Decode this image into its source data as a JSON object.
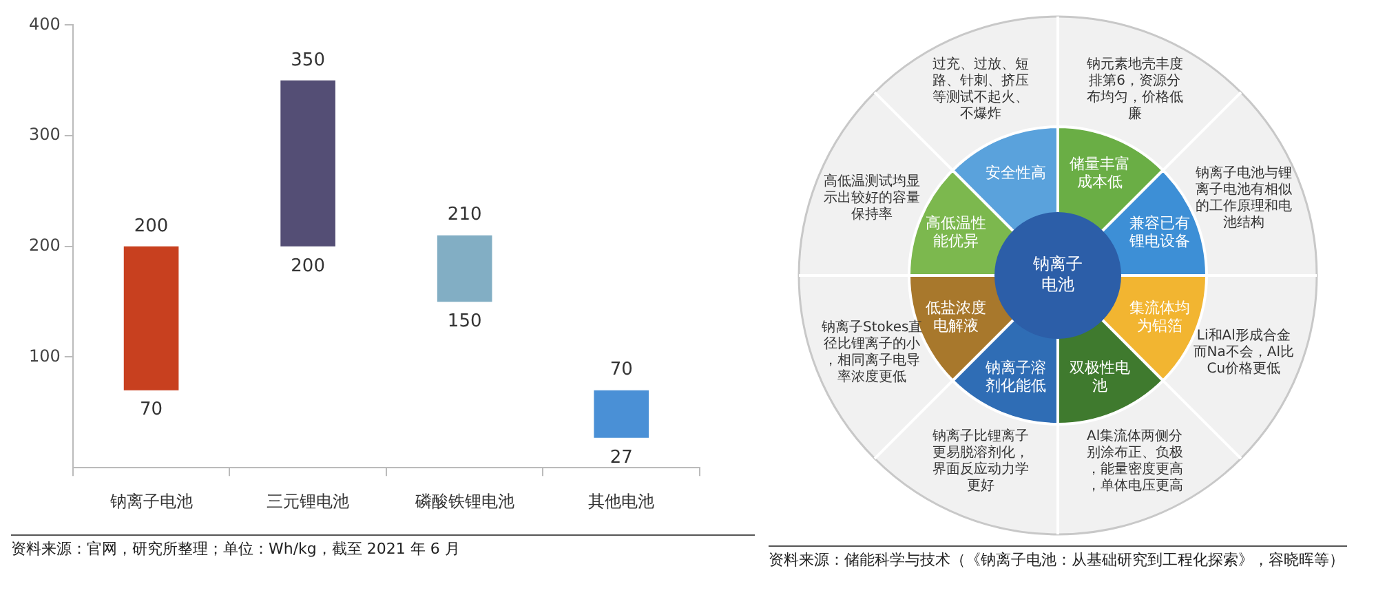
{
  "chart_data": [
    {
      "type": "bar",
      "categories": [
        "钠离子电池",
        "三元锂电池",
        "磷酸铁锂电池",
        "其他电池"
      ],
      "base": [
        70,
        200,
        150,
        27
      ],
      "values": [
        130,
        150,
        60,
        43
      ],
      "colors": [
        "#c8401f",
        "#544e75",
        "#82aec4",
        "#4a90d6"
      ],
      "ylim": [
        0,
        400
      ],
      "yticks": [
        100,
        200,
        300,
        400
      ],
      "grid": false,
      "annotations": [
        {
          "text": "200",
          "x": "钠离子电池",
          "y": 200
        },
        {
          "text": "70",
          "x": "钠离子电池",
          "y": 70
        },
        {
          "text": "350",
          "x": "三元锂电池",
          "y": 350
        },
        {
          "text": "200",
          "x": "三元锂电池",
          "y": 200
        },
        {
          "text": "210",
          "x": "磷酸铁锂电池",
          "y": 210
        },
        {
          "text": "150",
          "x": "磷酸铁锂电池",
          "y": 150
        },
        {
          "text": "70",
          "x": "其他电池",
          "y": 70
        },
        {
          "text": "27",
          "x": "其他电池",
          "y": 27
        },
        "资料来源：官网，研究所整理；单位：Wh/kg，截至 2021 年 6 月"
      ]
    },
    {
      "type": "donut",
      "title": "钠离子电池",
      "values": [
        12.5,
        12.5,
        12.5,
        12.5,
        12.5,
        12.5,
        12.5,
        12.5
      ],
      "categories": [
        "储量丰富成本低",
        "兼容已有锂电设备",
        "集流体均为铝箔",
        "双极性电池",
        "钠离子溶剂化能低",
        "低盐浓度电解液",
        "高低温性能优异",
        "安全性高"
      ],
      "colors": [
        "#6aae45",
        "#3d8fd6",
        "#f2b531",
        "#3f7a2e",
        "#2f6db5",
        "#a8782c",
        "#7cb84e",
        "#5aa2dc"
      ],
      "annotations": [
        "钠元素地壳丰度排第6，资源分布均匀，价格低廉",
        "钠离子电池与锂离子电池有相似的工作原理和电池结构",
        "Li和Al形成合金而Na不会，Al比Cu价格更低",
        "Al集流体两侧分别涂布正、负极，能量密度更高，单体电压更高",
        "钠离子比锂离子更易脱溶剂化，界面反应动力学更好",
        "钠离子Stokes直径比锂离子的小，相同离子电导率浓度更低",
        "高低温测试均显示出较好的容量保持率",
        "过充、过放、短路、针刺、挤压等测试不起火、不爆炸",
        "资料来源：储能科学与技术（《钠离子电池：从基础研究到工程化探索》，容晓晖等）"
      ]
    }
  ]
}
